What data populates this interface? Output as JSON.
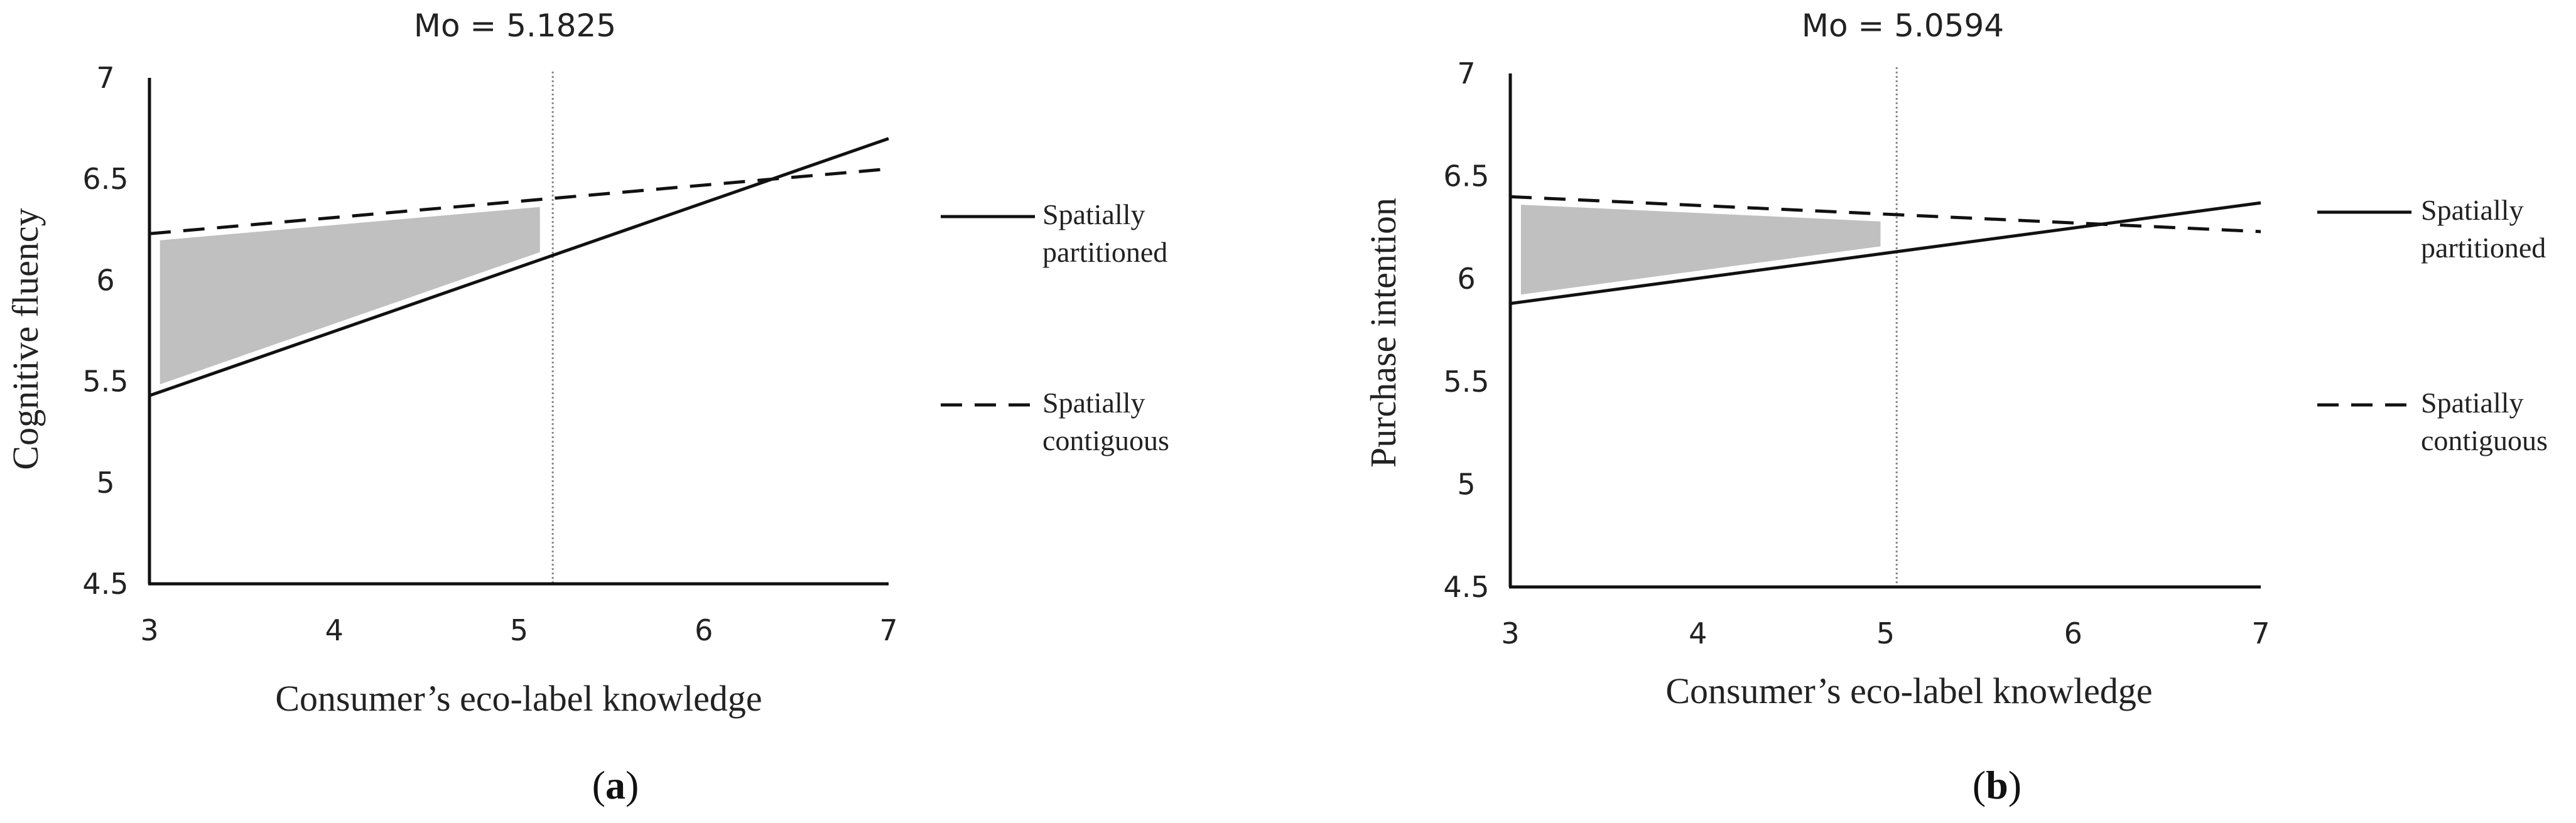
{
  "chart_data": [
    {
      "type": "line",
      "panel_label": "a",
      "title": "Mo = 5.1825",
      "xlabel": "Consumer’s eco-label knowledge",
      "ylabel": "Cognitive fluency",
      "xlim": [
        3,
        7
      ],
      "ylim": [
        4.5,
        7
      ],
      "xticks": [
        "3",
        "4",
        "5",
        "6",
        "7"
      ],
      "yticks": [
        "4.5",
        "5",
        "5.5",
        "6",
        "6.5",
        "7"
      ],
      "threshold_x": 5.1825,
      "shaded_region": {
        "x_from": 3.05,
        "x_to": 5.12
      },
      "series": [
        {
          "name": "Spatially partitioned",
          "style": "solid",
          "x": [
            3,
            7
          ],
          "y": [
            5.43,
            6.7
          ]
        },
        {
          "name": "Spatially contiguous",
          "style": "dashed",
          "x": [
            3,
            7
          ],
          "y": [
            6.23,
            6.55
          ]
        }
      ],
      "legend": {
        "placement": "right",
        "entries": [
          {
            "line1": "Spatially",
            "line2": "partitioned"
          },
          {
            "line1": "Spatially",
            "line2": "contiguous"
          }
        ]
      },
      "grid": false,
      "colors": {
        "line": "#111111",
        "shade": "#c0c0c0",
        "threshold": "#888888"
      }
    },
    {
      "type": "line",
      "panel_label": "b",
      "title": "Mo = 5.0594",
      "xlabel": "Consumer’s eco-label knowledge",
      "ylabel": "Purchase intention",
      "xlim": [
        3,
        7
      ],
      "ylim": [
        4.5,
        7
      ],
      "xticks": [
        "3",
        "4",
        "5",
        "6",
        "7"
      ],
      "yticks": [
        "4.5",
        "5",
        "5.5",
        "6",
        "6.5",
        "7"
      ],
      "threshold_x": 5.0594,
      "shaded_region": {
        "x_from": 3.05,
        "x_to": 4.98
      },
      "series": [
        {
          "name": "Spatially partitioned",
          "style": "solid",
          "x": [
            3,
            7
          ],
          "y": [
            5.88,
            6.37
          ]
        },
        {
          "name": "Spatially contiguous",
          "style": "dashed",
          "x": [
            3,
            7
          ],
          "y": [
            6.4,
            6.23
          ]
        }
      ],
      "legend": {
        "placement": "right",
        "entries": [
          {
            "line1": "Spatially",
            "line2": "partitioned"
          },
          {
            "line1": "Spatially",
            "line2": "contiguous"
          }
        ]
      },
      "grid": false,
      "colors": {
        "line": "#111111",
        "shade": "#c0c0c0",
        "threshold": "#888888"
      }
    }
  ]
}
